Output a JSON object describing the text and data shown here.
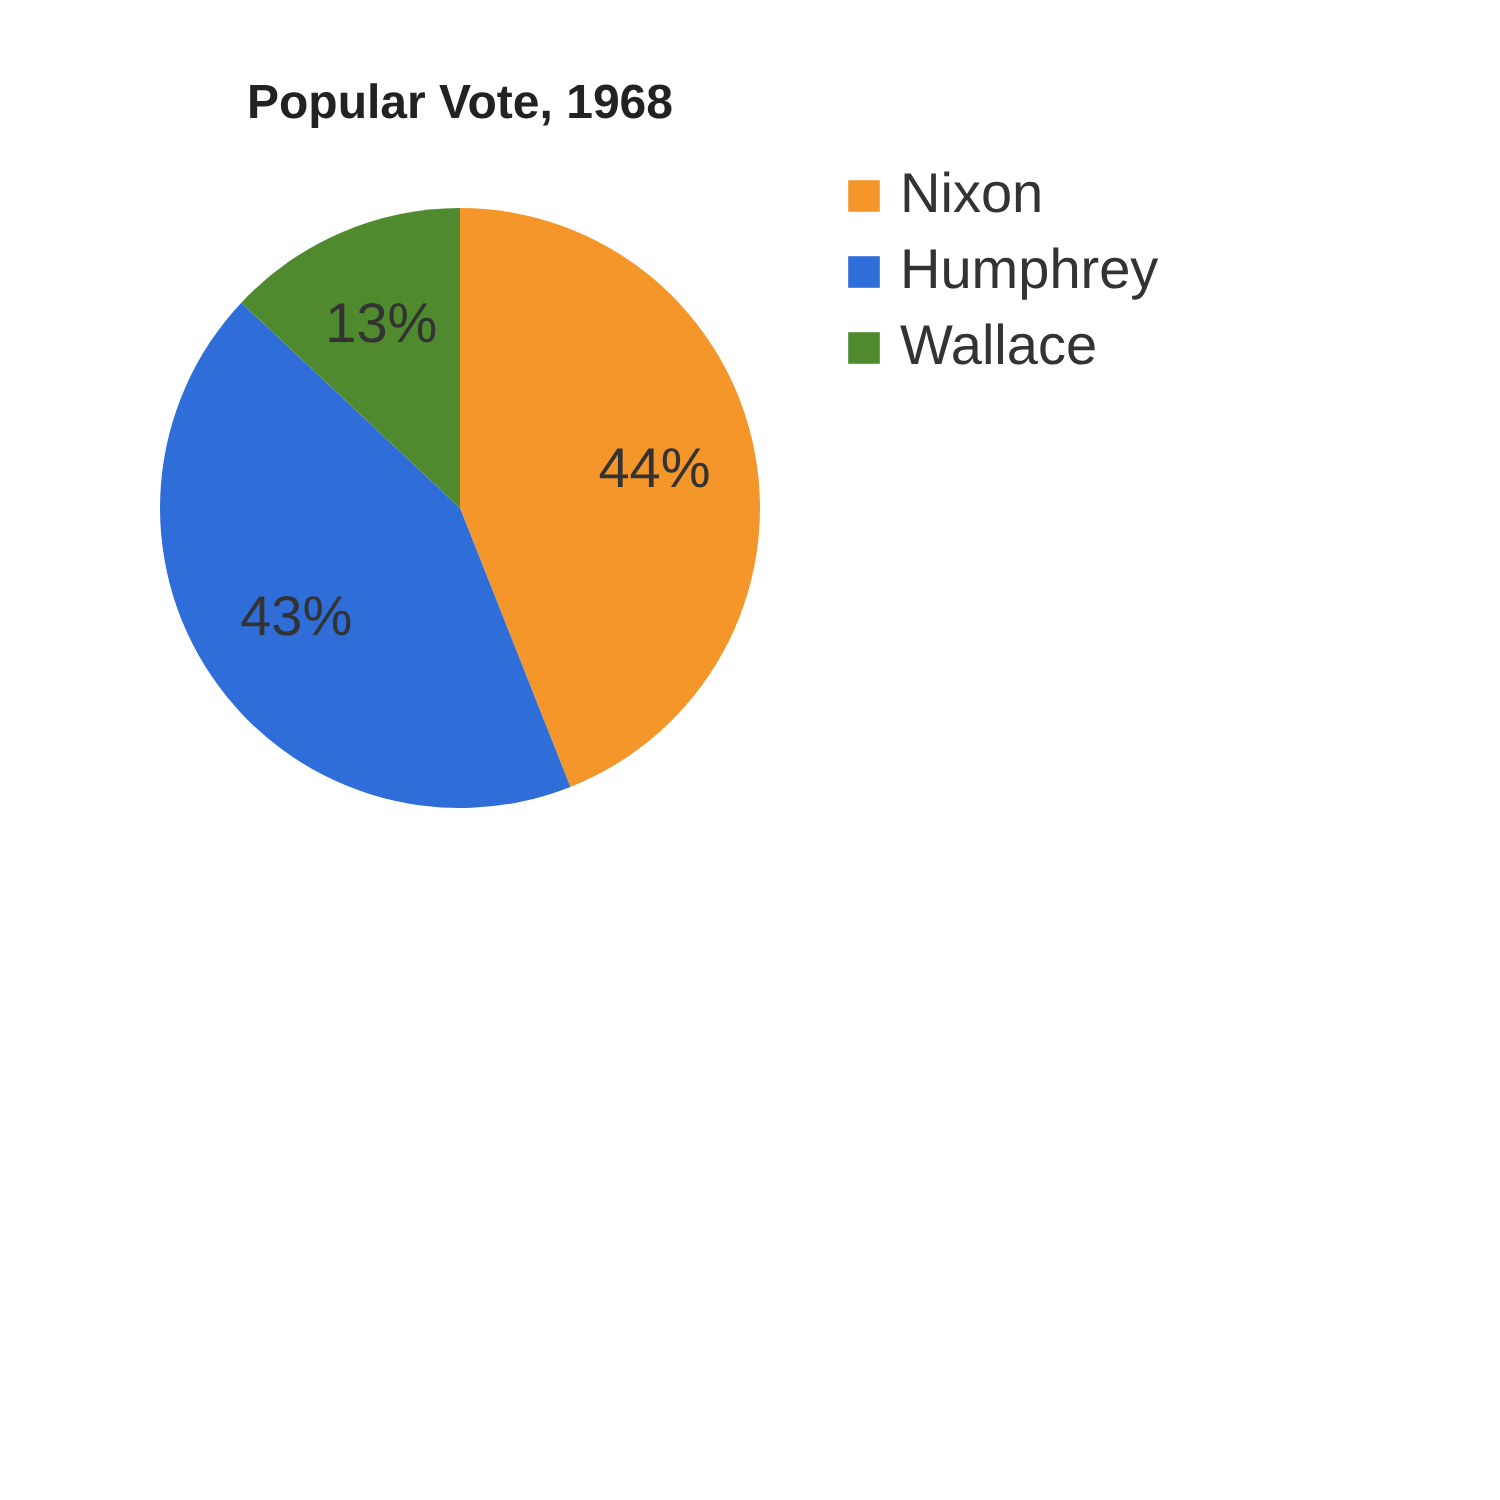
{
  "chart_data": {
    "type": "pie",
    "title": "Popular Vote, 1968",
    "categories": [
      "Nixon",
      "Humphrey",
      "Wallace"
    ],
    "values": [
      44,
      43,
      13
    ],
    "colors": [
      "#f5962a",
      "#2f6ed8",
      "#4f8a2e"
    ],
    "value_labels": [
      "44%",
      "43%",
      "13%"
    ],
    "legend": "right"
  }
}
